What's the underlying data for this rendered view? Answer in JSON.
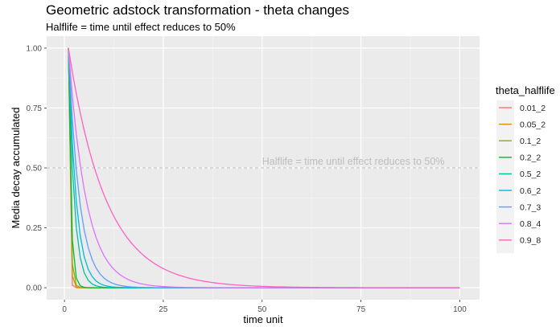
{
  "chart_data": {
    "type": "line",
    "title": "Geometric adstock transformation - theta changes",
    "subtitle": "Halflife = time until effect reduces to 50%",
    "xlabel": "time unit",
    "ylabel": "Media decay accumulated",
    "xlim": [
      -4.5,
      105
    ],
    "ylim": [
      -0.05,
      1.05
    ],
    "x_ticks": [
      0,
      25,
      50,
      75,
      100
    ],
    "y_ticks": [
      0.0,
      0.25,
      0.5,
      0.75,
      1.0
    ],
    "x_tick_labels": [
      "0",
      "25",
      "50",
      "75",
      "100"
    ],
    "y_tick_labels": [
      "0.00",
      "0.25",
      "0.50",
      "0.75",
      "1.00"
    ],
    "grid": true,
    "legend": {
      "title": "theta_halflife",
      "position": "right"
    },
    "x_range": [
      1,
      100
    ],
    "series": [
      {
        "name": "0.01_2",
        "theta": 0.01,
        "color": "#F8766D"
      },
      {
        "name": "0.05_2",
        "theta": 0.05,
        "color": "#D39200"
      },
      {
        "name": "0.1_2",
        "theta": 0.1,
        "color": "#93AA00"
      },
      {
        "name": "0.2_2",
        "theta": 0.2,
        "color": "#00BA38"
      },
      {
        "name": "0.5_2",
        "theta": 0.5,
        "color": "#00C19F"
      },
      {
        "name": "0.6_2",
        "theta": 0.6,
        "color": "#00B9E3"
      },
      {
        "name": "0.7_3",
        "theta": 0.7,
        "color": "#619CFF"
      },
      {
        "name": "0.8_4",
        "theta": 0.8,
        "color": "#DB72FB"
      },
      {
        "name": "0.9_8",
        "theta": 0.9,
        "color": "#FF61C3"
      }
    ],
    "annotations": [
      {
        "type": "hline",
        "y": 0.5,
        "style": "dashed",
        "color": "#c8c8c8"
      },
      {
        "type": "text",
        "text": "Halflife = time until effect reduces to 50%",
        "x": 50,
        "y": 0.5,
        "color": "#bdbdbd"
      }
    ]
  }
}
